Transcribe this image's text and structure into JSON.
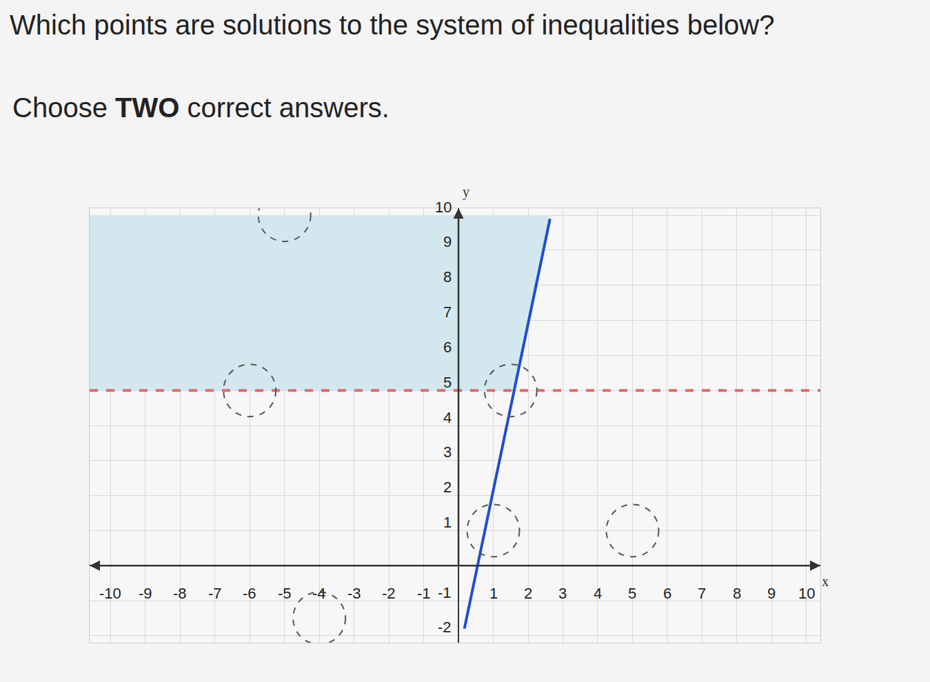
{
  "chart_data": {
    "type": "inequality",
    "title": "Which points are solutions to the system of inequalities below?",
    "subtitle": "Choose TWO correct answers.",
    "x_label": "x",
    "y_label": "y",
    "xlim": [
      -10.6,
      10.4
    ],
    "ylim": [
      -2.2,
      10.2
    ],
    "xticks": [
      -10,
      -9,
      -8,
      -7,
      -6,
      -5,
      -4,
      -3,
      -2,
      -1,
      1,
      2,
      3,
      4,
      5,
      6,
      7,
      8,
      9,
      10
    ],
    "yticks": [
      -2,
      -1,
      1,
      2,
      3,
      4,
      5,
      6,
      7,
      8,
      9,
      10
    ],
    "grid": true,
    "shaded_region": {
      "color": "#d3e8ee",
      "x": [
        -10.6,
        1.6,
        2.63,
        -10.6
      ],
      "values": [
        5,
        5,
        10,
        10
      ]
    },
    "series": [
      {
        "type": "line",
        "color": "#1f4fcf",
        "line_style": "solid",
        "x": [
          0.17,
          2.63
        ],
        "values": [
          -1.8,
          9.9
        ]
      },
      {
        "type": "line",
        "color": "#e06a6a",
        "line_style": "dashed",
        "x": [
          -10.6,
          10.4
        ],
        "values": [
          5,
          5
        ]
      }
    ],
    "answer_choices": {
      "x": [
        -5,
        -6,
        1.5,
        1,
        5,
        -4
      ],
      "values": [
        10,
        5,
        5,
        1,
        1,
        -1.5
      ]
    }
  }
}
